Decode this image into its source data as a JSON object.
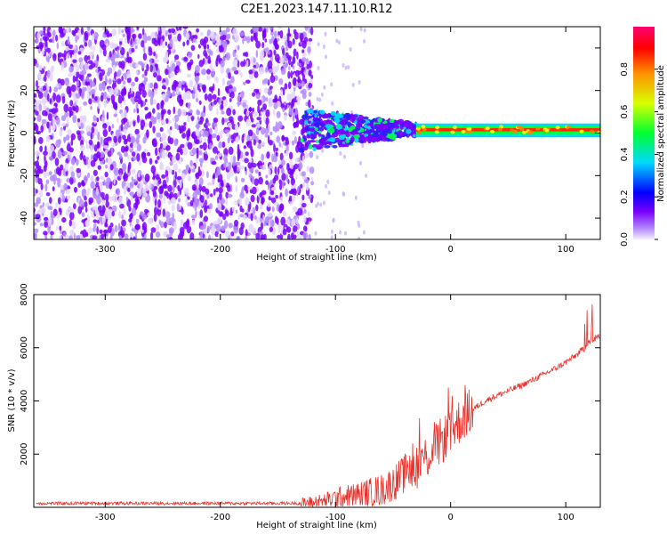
{
  "page_title": "C2E1.2023.147.11.10.R12",
  "colors": {
    "spectrogram_purple": "#7a1cff",
    "snr_line": "#e8302a",
    "axis": "#000000",
    "colormap": [
      "#e7e0ff",
      "#7a00ff",
      "#0000ff",
      "#00e5ff",
      "#00ff00",
      "#ffff00",
      "#ff8000",
      "#ff0000",
      "#ff0080"
    ]
  },
  "chart_data": [
    {
      "type": "heatmap",
      "title": "C2E1.2023.147.11.10.R12",
      "xlabel": "Height of straight line (km)",
      "ylabel": "Frequency (Hz)",
      "xlim": [
        -362,
        130
      ],
      "ylim": [
        -50,
        50
      ],
      "xticks": [
        -300,
        -200,
        -100,
        0,
        100
      ],
      "yticks": [
        -40,
        -20,
        0,
        20,
        40
      ],
      "noise_region_x": [
        -362,
        -120
      ],
      "signal_frequency_hz": 1.5,
      "features": [
        {
          "label": "noise",
          "x_range": [
            -362,
            -120
          ],
          "freq_range": [
            -50,
            50
          ],
          "amplitude": 0.1
        },
        {
          "label": "transition",
          "x_range": [
            -130,
            -30
          ],
          "freq_range": [
            -12,
            12
          ],
          "amplitude": 0.3
        },
        {
          "label": "carrier",
          "x_range": [
            -30,
            130
          ],
          "freq_range": [
            -1.5,
            4
          ],
          "amplitude": 0.95
        }
      ],
      "colorbar": {
        "label": "Normalized spectral amplitude",
        "range": [
          0.0,
          1.0
        ],
        "ticks": [
          0.0,
          0.2,
          0.4,
          0.6,
          0.8
        ]
      }
    },
    {
      "type": "line",
      "xlabel": "Height of straight line (km)",
      "ylabel": "SNR (10 * v/v)",
      "xlim": [
        -362,
        130
      ],
      "ylim": [
        0,
        8000
      ],
      "xticks": [
        -300,
        -200,
        -100,
        0,
        100
      ],
      "yticks": [
        2000,
        4000,
        6000,
        8000
      ],
      "series": [
        {
          "x": [
            -360,
            -300,
            -200,
            -130,
            -110,
            -100,
            -80,
            -60,
            -50,
            -40,
            -30,
            -20,
            -10,
            0,
            10,
            20,
            30,
            40,
            50,
            60,
            70,
            80,
            90,
            100,
            110,
            115,
            118,
            120,
            125,
            130
          ],
          "y": [
            150,
            150,
            150,
            150,
            220,
            350,
            480,
            650,
            900,
            1250,
            1550,
            1950,
            2400,
            2850,
            3350,
            3700,
            4000,
            4200,
            4380,
            4560,
            4760,
            4980,
            5200,
            5450,
            5750,
            5950,
            6100,
            6200,
            6350,
            6450
          ]
        }
      ]
    }
  ]
}
